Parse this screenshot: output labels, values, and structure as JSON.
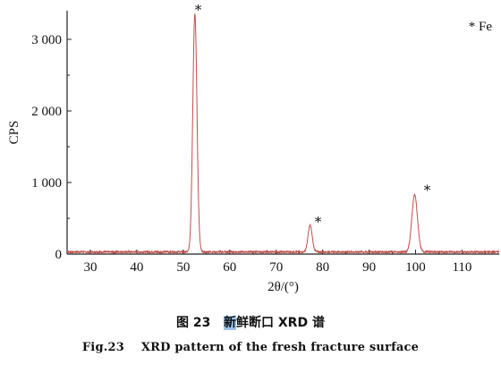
{
  "chart_data": {
    "type": "line",
    "xlabel": "2θ/(°)",
    "ylabel": "CPS",
    "xlim": [
      25,
      118
    ],
    "ylim": [
      0,
      3400
    ],
    "xticks": [
      30,
      40,
      50,
      60,
      70,
      80,
      90,
      100,
      110
    ],
    "yticks": [
      0,
      1000,
      2000,
      3000
    ],
    "ytick_labels": [
      "0",
      "1 000",
      "2 000",
      "3 000"
    ],
    "grid": false,
    "line_color": "#c0504d",
    "baseline_cps": 30,
    "peaks": [
      {
        "two_theta": 52.5,
        "cps": 3360
      },
      {
        "two_theta": 77.3,
        "cps": 400
      },
      {
        "two_theta": 99.8,
        "cps": 830
      }
    ],
    "annotations": [
      {
        "text": "*",
        "two_theta": 53.2,
        "cps": 3400
      },
      {
        "text": "*",
        "two_theta": 79.0,
        "cps": 440
      },
      {
        "text": "*",
        "two_theta": 102.5,
        "cps": 880
      }
    ],
    "legend": {
      "text": "* Fe",
      "placement": "top-right"
    }
  },
  "caption": {
    "cn_prefix": "图 23   ",
    "cn_highlight": "新",
    "cn_rest": "鲜断口 XRD 谱",
    "en": "Fig.23    XRD pattern of the fresh fracture surface"
  }
}
